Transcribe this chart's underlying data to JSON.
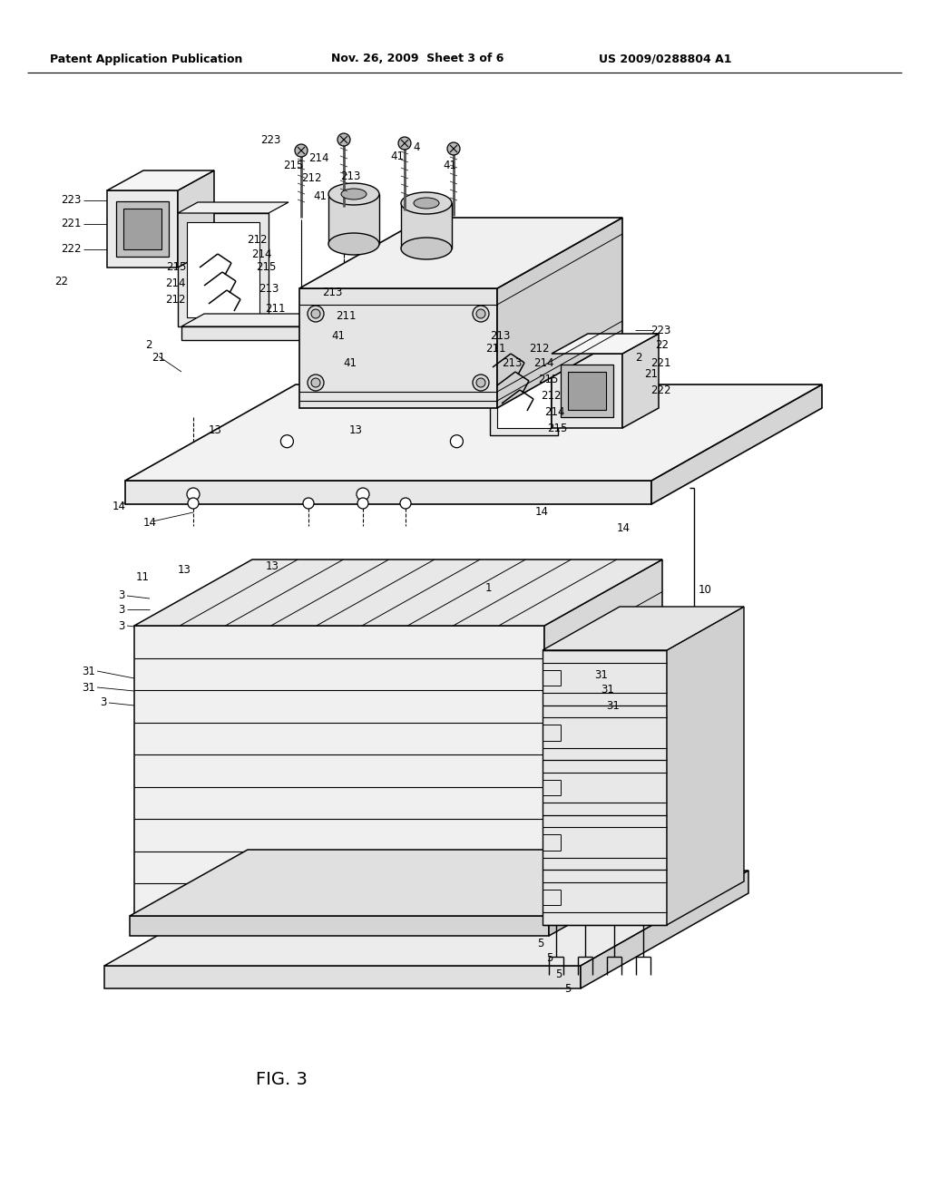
{
  "header_left": "Patent Application Publication",
  "header_mid": "Nov. 26, 2009  Sheet 3 of 6",
  "header_right": "US 2009/0288804 A1",
  "figure_label": "FIG. 3",
  "bg_color": "#ffffff",
  "lc": "#000000"
}
